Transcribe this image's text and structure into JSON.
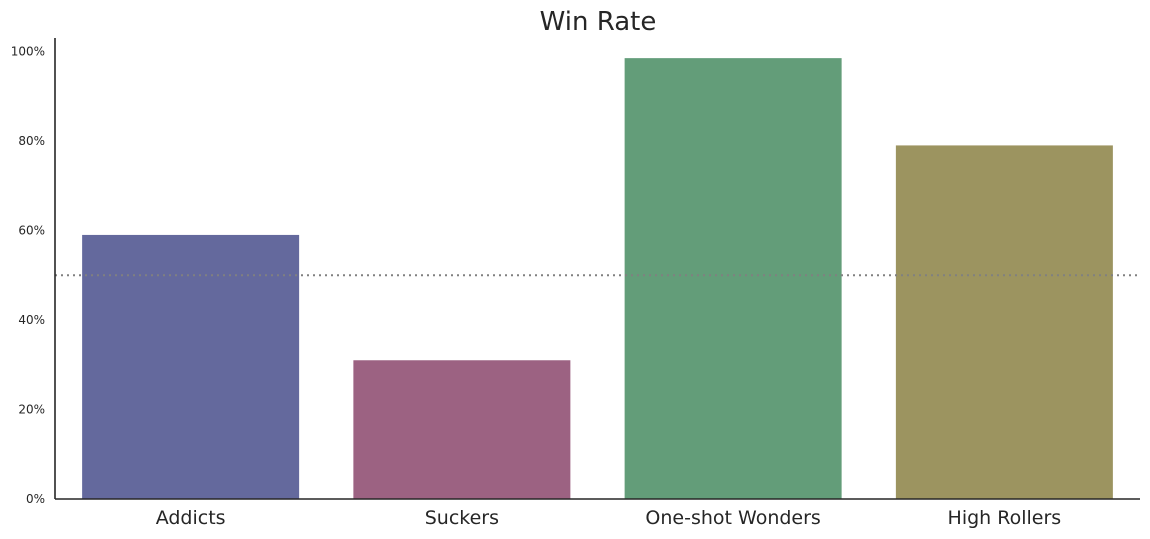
{
  "chart_data": {
    "type": "bar",
    "title": "Win Rate",
    "xlabel": "",
    "ylabel": "",
    "categories": [
      "Addicts",
      "Suckers",
      "One-shot Wonders",
      "High Rollers"
    ],
    "values": [
      59,
      31,
      98.5,
      79
    ],
    "colors": [
      "#64699d",
      "#9c6282",
      "#639d79",
      "#9c9460"
    ],
    "ylim": [
      0,
      103
    ],
    "yticks": [
      0,
      20,
      40,
      60,
      80,
      100
    ],
    "ytick_labels": [
      "0%",
      "20%",
      "40%",
      "60%",
      "80%",
      "100%"
    ],
    "reference_line": {
      "value": 50,
      "style": "dotted",
      "color": "#808080"
    },
    "grid": false,
    "spines": [
      "left",
      "bottom"
    ]
  }
}
